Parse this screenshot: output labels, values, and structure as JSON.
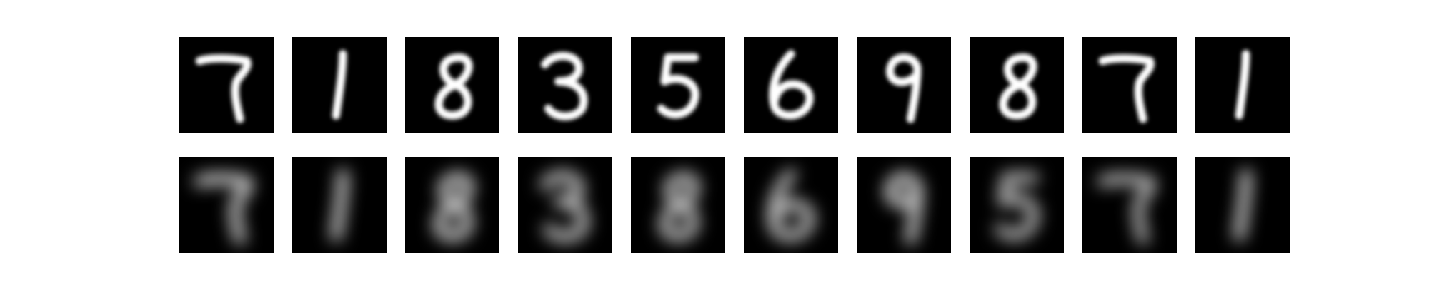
{
  "figure": {
    "rows": [
      {
        "role": "original",
        "tiles": [
          {
            "digit": "7",
            "stroke": "#ffffff",
            "blur": 0
          },
          {
            "digit": "1",
            "stroke": "#ffffff",
            "blur": 0
          },
          {
            "digit": "8",
            "stroke": "#ffffff",
            "blur": 0
          },
          {
            "digit": "3",
            "stroke": "#ffffff",
            "blur": 0
          },
          {
            "digit": "5",
            "stroke": "#ffffff",
            "blur": 0
          },
          {
            "digit": "6",
            "stroke": "#ffffff",
            "blur": 0
          },
          {
            "digit": "9",
            "stroke": "#ffffff",
            "blur": 0
          },
          {
            "digit": "8",
            "stroke": "#ffffff",
            "blur": 0
          },
          {
            "digit": "7",
            "stroke": "#ffffff",
            "blur": 0
          },
          {
            "digit": "1",
            "stroke": "#ffffff",
            "blur": 0
          }
        ]
      },
      {
        "role": "reconstruction",
        "tiles": [
          {
            "digit": "7",
            "stroke": "#d8d8d8",
            "blur": 1
          },
          {
            "digit": "1",
            "stroke": "#d8d8d8",
            "blur": 1
          },
          {
            "digit": "8",
            "stroke": "#d0d0d0",
            "blur": 1
          },
          {
            "digit": "3",
            "stroke": "#c8c8c8",
            "blur": 1
          },
          {
            "digit": "8",
            "stroke": "#c8c8c8",
            "blur": 1
          },
          {
            "digit": "6",
            "stroke": "#c8c8c8",
            "blur": 1
          },
          {
            "digit": "9",
            "stroke": "#d8d8d8",
            "blur": 1
          },
          {
            "digit": "5",
            "stroke": "#c0c0c0",
            "blur": 1
          },
          {
            "digit": "7",
            "stroke": "#c0c0c0",
            "blur": 1
          },
          {
            "digit": "1",
            "stroke": "#d8d8d8",
            "blur": 1
          }
        ]
      }
    ]
  }
}
